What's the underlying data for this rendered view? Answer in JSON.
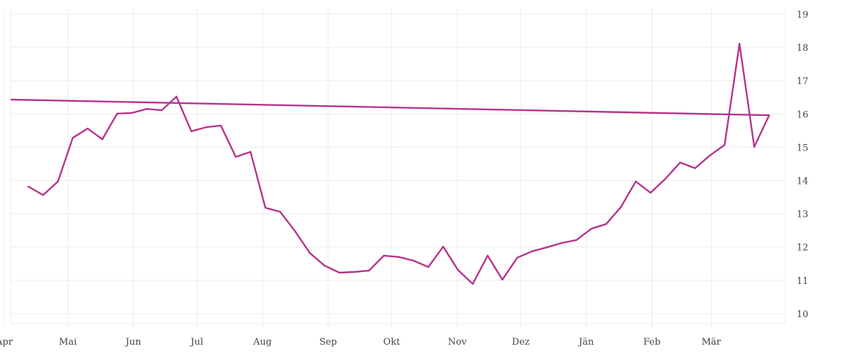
{
  "chart_data": {
    "type": "line",
    "title": "",
    "xlabel": "",
    "ylabel": "",
    "ylim": [
      9.65,
      19.2
    ],
    "yticks": [
      10,
      11,
      12,
      13,
      14,
      15,
      16,
      17,
      18,
      19
    ],
    "y_axis_position": "right",
    "grid": true,
    "line_color": "#b5338a",
    "x_tick_labels": [
      {
        "date": "05-01",
        "label": "Mai"
      },
      {
        "date": "06-01",
        "label": "Jun"
      },
      {
        "date": "07-01",
        "label": "Jul"
      },
      {
        "date": "08-01",
        "label": "Aug"
      },
      {
        "date": "09-01",
        "label": "Sep"
      },
      {
        "date": "10-01",
        "label": "Okt"
      },
      {
        "date": "11-01",
        "label": "Nov"
      },
      {
        "date": "12-01",
        "label": "Dez"
      },
      {
        "date": "01-01",
        "label": "Jän"
      },
      {
        "date": "02-01",
        "label": "Feb"
      },
      {
        "date": "03-01",
        "label": "Mär"
      },
      {
        "date": "04-01",
        "label": "Apr"
      }
    ],
    "x": [
      "04-11",
      "04-18",
      "04-25",
      "05-02",
      "05-09",
      "05-16",
      "05-23",
      "05-30",
      "06-06",
      "06-13",
      "06-20",
      "06-27",
      "07-04",
      "07-11",
      "07-18",
      "07-25",
      "08-01",
      "08-08",
      "08-15",
      "08-22",
      "08-29",
      "09-05",
      "09-12",
      "09-19",
      "09-26",
      "10-03",
      "10-10",
      "10-17",
      "10-24",
      "10-31",
      "11-07",
      "11-14",
      "11-21",
      "11-28",
      "12-05",
      "12-12",
      "12-19",
      "12-26",
      "01-02",
      "01-09",
      "01-16",
      "01-23",
      "01-30",
      "02-06",
      "02-13",
      "02-20",
      "02-27",
      "03-06",
      "03-13",
      "03-20",
      "03-27",
      "04-03"
    ],
    "values": [
      13.82,
      13.56,
      13.97,
      15.28,
      15.56,
      15.24,
      16.01,
      16.03,
      16.15,
      16.11,
      16.52,
      15.48,
      15.6,
      15.65,
      14.71,
      14.86,
      13.18,
      13.06,
      12.48,
      11.82,
      11.44,
      11.23,
      11.25,
      11.29,
      11.74,
      11.7,
      11.59,
      11.4,
      12.01,
      11.31,
      10.89,
      11.74,
      11.02,
      11.68,
      11.87,
      11.99,
      12.12,
      12.21,
      12.55,
      12.69,
      13.2,
      13.97,
      13.63,
      14.05,
      14.54,
      14.37,
      14.75,
      15.07,
      18.11,
      15.01,
      15.96,
      16.43
    ]
  }
}
